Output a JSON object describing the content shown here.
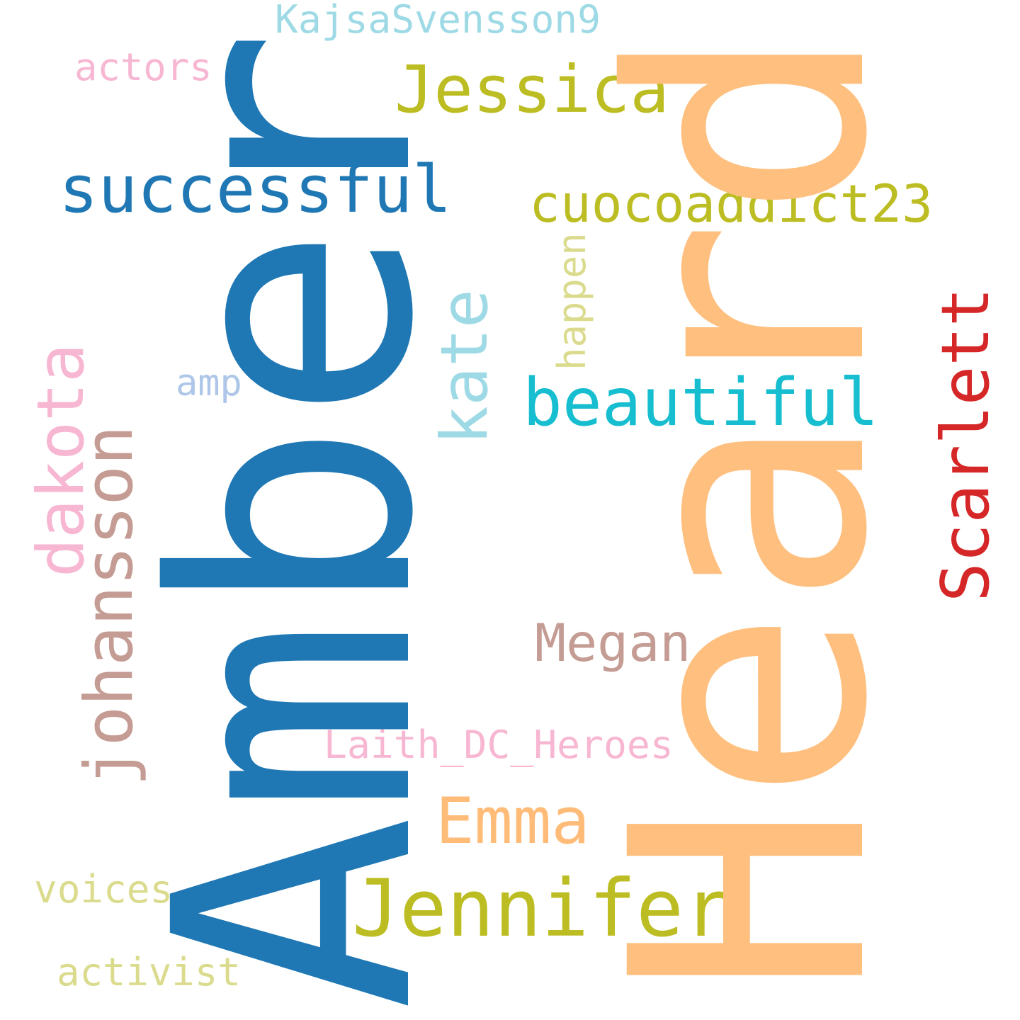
{
  "words": {
    "amber": {
      "text": "Amber",
      "color": "#1f77b4"
    },
    "heard": {
      "text": "Heard",
      "color": "#ffbf7f"
    },
    "jessica": {
      "text": "Jessica",
      "color": "#bcbd22"
    },
    "successful": {
      "text": "successful",
      "color": "#1f77b4"
    },
    "cuocoaddict23": {
      "text": "cuocoaddict23",
      "color": "#bcbd22"
    },
    "kajsasvensson9": {
      "text": "KajsaSvensson9",
      "color": "#9edae5"
    },
    "actors": {
      "text": "actors",
      "color": "#f7b6d2"
    },
    "happen": {
      "text": "happen",
      "color": "#dbdb8d"
    },
    "kate": {
      "text": "kate",
      "color": "#9edae5"
    },
    "beautiful": {
      "text": "beautiful",
      "color": "#17becf"
    },
    "scarlett": {
      "text": "Scarlett",
      "color": "#d62728"
    },
    "amp": {
      "text": "amp",
      "color": "#aec7e8"
    },
    "dakota": {
      "text": "dakota",
      "color": "#f7b6d2"
    },
    "johansson": {
      "text": "johansson",
      "color": "#c49c94"
    },
    "megan": {
      "text": "Megan",
      "color": "#c49c94"
    },
    "laith": {
      "text": "Laith_DC_Heroes",
      "color": "#f7b6d2"
    },
    "emma": {
      "text": "Emma",
      "color": "#ffbb78"
    },
    "jennifer": {
      "text": "Jennifer",
      "color": "#bcbd22"
    },
    "voices": {
      "text": "voices",
      "color": "#dbdb8d"
    },
    "activist": {
      "text": "activist",
      "color": "#dbdb8d"
    }
  }
}
